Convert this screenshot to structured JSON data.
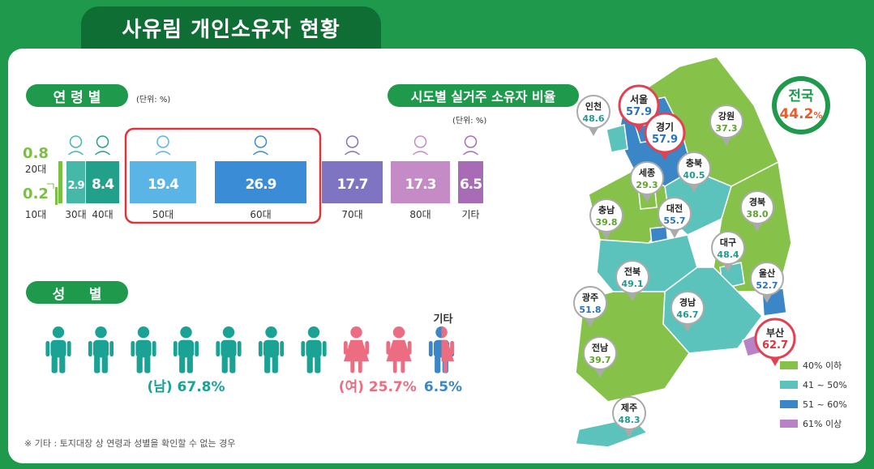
{
  "title": "사유림 개인소유자 현황",
  "age_section": {
    "label": "연 령 별",
    "unit": "(단위: %)"
  },
  "region_section": {
    "label": "시도별 실거주 소유자 비율",
    "unit": "(단위: %)"
  },
  "gender_section": {
    "label": "성     별"
  },
  "footnote": "※ 기타 : 토지대장 상 연령과 성별을 확인할 수 없는 경우",
  "national": {
    "label": "전국",
    "value": "44.2",
    "unit": "%"
  },
  "chart_data": [
    {
      "type": "bar",
      "categories": [
        "10대",
        "20대",
        "30대",
        "40대",
        "50대",
        "60대",
        "70대",
        "80대",
        "기타"
      ],
      "values": [
        0.2,
        0.8,
        2.9,
        8.4,
        19.4,
        26.9,
        17.7,
        17.3,
        6.5
      ],
      "highlight": [
        "50대",
        "60대"
      ],
      "colors": [
        "#7ac143",
        "#7ac143",
        "#45b8a8",
        "#22a08a",
        "#5ab4e6",
        "#3a8cd6",
        "#7e74c1",
        "#c48bc6",
        "#a86cb6"
      ]
    },
    {
      "type": "pictogram",
      "series": [
        {
          "name": "(남)",
          "value": 67.8,
          "value_label": "67.8%",
          "icons": 7,
          "color": "#1aa394"
        },
        {
          "name": "(여)",
          "value": 25.7,
          "value_label": "25.7%",
          "icons": 2,
          "color": "#ec6d82"
        },
        {
          "name": "기타",
          "value": 6.5,
          "value_label": "6.5%",
          "icons": 1,
          "color": "#3a87c8"
        }
      ]
    },
    {
      "type": "map",
      "regions": [
        {
          "name": "인천",
          "value": 48.6
        },
        {
          "name": "서울",
          "value": 57.9
        },
        {
          "name": "경기",
          "value": 57.9
        },
        {
          "name": "강원",
          "value": 37.3
        },
        {
          "name": "세종",
          "value": 29.3
        },
        {
          "name": "충북",
          "value": 40.5
        },
        {
          "name": "충남",
          "value": 39.8
        },
        {
          "name": "대전",
          "value": 55.7
        },
        {
          "name": "경북",
          "value": 38.0
        },
        {
          "name": "대구",
          "value": 48.4
        },
        {
          "name": "전북",
          "value": 49.1
        },
        {
          "name": "울산",
          "value": 52.7
        },
        {
          "name": "광주",
          "value": 51.8
        },
        {
          "name": "경남",
          "value": 46.7
        },
        {
          "name": "부산",
          "value": 62.7
        },
        {
          "name": "전남",
          "value": 39.7
        },
        {
          "name": "제주",
          "value": 48.3
        }
      ],
      "legend": [
        {
          "label": "40% 이하",
          "color": "#86c24a"
        },
        {
          "label": "41 ~ 50%",
          "color": "#5cc3bc"
        },
        {
          "label": "51 ~ 60%",
          "color": "#3b86c7"
        },
        {
          "label": "61% 이상",
          "color": "#b882c7"
        }
      ]
    }
  ]
}
